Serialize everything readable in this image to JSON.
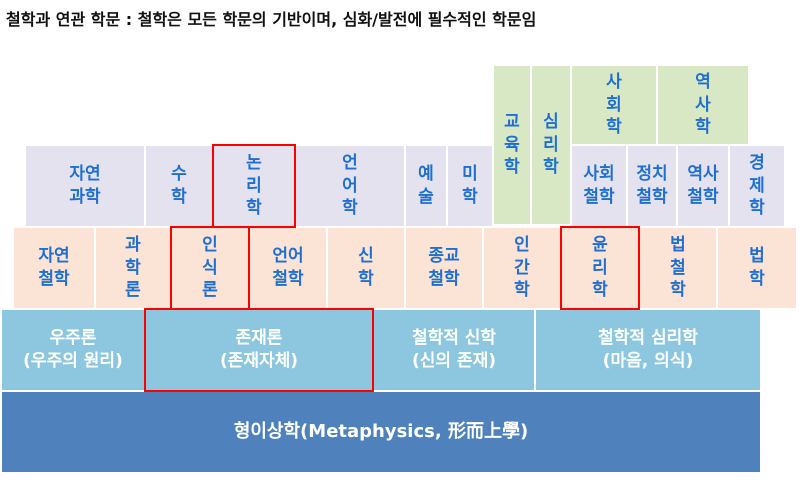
{
  "title": "철학과 연관 학문 : 철학은 모든 학문의 기반이며, 심화/발전에 필수적인 학문임",
  "row_green": [
    {
      "label": "교\n육\n학"
    },
    {
      "label": "심\n리\n학"
    },
    {
      "label": "사\n회\n학"
    },
    {
      "label": "역\n사\n학"
    }
  ],
  "row_purple": [
    {
      "label": "자연\n과학"
    },
    {
      "label": "수\n학"
    },
    {
      "label": "논\n리\n학"
    },
    {
      "label": "언\n어\n학"
    },
    {
      "label": "예\n술"
    },
    {
      "label": "미\n학"
    },
    {
      "label": "사회\n철학"
    },
    {
      "label": "정치\n철학"
    },
    {
      "label": "역사\n철학"
    },
    {
      "label": "경\n제\n학"
    }
  ],
  "row_peach": [
    {
      "label": "자연\n철학"
    },
    {
      "label": "과\n학\n론"
    },
    {
      "label": "인\n식\n론"
    },
    {
      "label": "언어\n철학"
    },
    {
      "label": "신\n학"
    },
    {
      "label": "종교\n철학"
    },
    {
      "label": "인\n간\n학"
    },
    {
      "label": "윤\n리\n학"
    },
    {
      "label": "법\n철\n학"
    },
    {
      "label": "법\n학"
    }
  ],
  "row_blue": [
    {
      "label": "우주론\n(우주의 원리)"
    },
    {
      "label": "존재론\n(존재자체)"
    },
    {
      "label": "철학적 신학\n(신의 존재)"
    },
    {
      "label": "철학적 심리학\n(마음, 의식)"
    }
  ],
  "base": {
    "label": "형이상학(Metaphysics, 形而上學)"
  },
  "colors": {
    "highlight": "#ff0000",
    "text_blue": "#1f6fd1",
    "purple": "#e5e2ef",
    "peach": "#fbe4d5",
    "green": "#d8e8c4",
    "light_blue": "#8dc7df",
    "base_blue": "#4f81bd"
  }
}
